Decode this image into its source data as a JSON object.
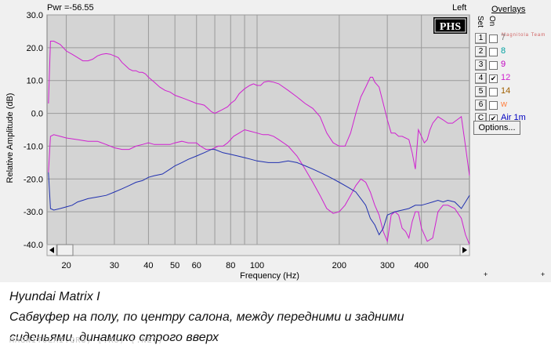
{
  "header": {
    "pwr_label": "Pwr =-56.55",
    "channel": "Left",
    "logo": "PHS",
    "watermark_brand": "Magnitola Team"
  },
  "overlays": {
    "title": "Overlays",
    "set_label": "Set",
    "on_label": "On",
    "items": [
      {
        "key": "1",
        "label": "7",
        "checked": false,
        "color": "#808080"
      },
      {
        "key": "2",
        "label": "8",
        "checked": false,
        "color": "#00a0a0"
      },
      {
        "key": "3",
        "label": "9",
        "checked": false,
        "color": "#c000c0"
      },
      {
        "key": "4",
        "label": "12",
        "checked": true,
        "color": "#d020d0"
      },
      {
        "key": "5",
        "label": "14",
        "checked": false,
        "color": "#a06000"
      },
      {
        "key": "6",
        "label": "w",
        "checked": false,
        "color": "#ff8040"
      },
      {
        "key": "C",
        "label": "Air 1m",
        "checked": true,
        "color": "#0000c0"
      }
    ],
    "options_label": "Options..."
  },
  "chart_data": {
    "type": "line",
    "xlabel": "Frequency (Hz)",
    "ylabel": "Relative Amplitude (dB)",
    "xscale": "log",
    "xlim": [
      17,
      600
    ],
    "ylim": [
      -40,
      30
    ],
    "grid": true,
    "xticks": [
      20,
      30,
      40,
      50,
      60,
      80,
      100,
      200,
      300,
      400
    ],
    "xminor": [
      70,
      90
    ],
    "yticks": [
      30,
      20,
      10,
      0,
      -10,
      -20,
      -30,
      -40
    ],
    "ytick_labels": [
      "30.0",
      "20.0",
      "10.0",
      "0.0",
      "-10.0",
      "-20.0",
      "-30.0",
      "-40.0"
    ],
    "series": [
      {
        "color": "#d020d0",
        "points": [
          [
            17.2,
            3
          ],
          [
            17.5,
            22
          ],
          [
            18,
            22
          ],
          [
            19,
            21
          ],
          [
            20,
            19
          ],
          [
            21,
            18
          ],
          [
            22,
            17
          ],
          [
            23,
            16
          ],
          [
            24,
            16
          ],
          [
            25,
            16.5
          ],
          [
            26,
            17.5
          ],
          [
            27,
            18
          ],
          [
            28,
            18.2
          ],
          [
            29,
            18
          ],
          [
            30,
            17.5
          ],
          [
            31,
            17
          ],
          [
            32,
            15.5
          ],
          [
            33,
            14.5
          ],
          [
            34,
            13.5
          ],
          [
            35,
            13
          ],
          [
            36,
            13
          ],
          [
            37,
            12.5
          ],
          [
            38,
            12.5
          ],
          [
            39,
            12
          ],
          [
            40,
            11
          ],
          [
            42,
            9.5
          ],
          [
            44,
            8
          ],
          [
            46,
            7
          ],
          [
            48,
            6.5
          ],
          [
            50,
            5.5
          ],
          [
            52,
            5
          ],
          [
            54,
            4.5
          ],
          [
            56,
            4
          ],
          [
            58,
            3.5
          ],
          [
            60,
            3
          ],
          [
            62,
            2.8
          ],
          [
            64,
            2.5
          ],
          [
            66,
            1.5
          ],
          [
            68,
            0.5
          ],
          [
            70,
            0
          ],
          [
            72,
            0.5
          ],
          [
            74,
            1
          ],
          [
            76,
            1.5
          ],
          [
            78,
            2
          ],
          [
            80,
            3
          ],
          [
            83,
            4
          ],
          [
            86,
            6
          ],
          [
            90,
            7.5
          ],
          [
            94,
            8.5
          ],
          [
            97,
            9
          ],
          [
            100,
            8.5
          ],
          [
            103,
            8.5
          ],
          [
            106,
            9.5
          ],
          [
            110,
            9.8
          ],
          [
            115,
            9.5
          ],
          [
            120,
            9
          ],
          [
            130,
            7
          ],
          [
            140,
            5
          ],
          [
            150,
            3
          ],
          [
            160,
            1.5
          ],
          [
            170,
            -1
          ],
          [
            180,
            -6
          ],
          [
            190,
            -9
          ],
          [
            200,
            -10
          ],
          [
            210,
            -10
          ],
          [
            220,
            -6
          ],
          [
            230,
            0
          ],
          [
            240,
            5
          ],
          [
            250,
            8
          ],
          [
            260,
            11
          ],
          [
            265,
            11
          ],
          [
            270,
            9.5
          ],
          [
            280,
            8
          ],
          [
            290,
            3
          ],
          [
            300,
            -2
          ],
          [
            310,
            -6
          ],
          [
            320,
            -6
          ],
          [
            330,
            -7
          ],
          [
            340,
            -7
          ],
          [
            360,
            -8
          ],
          [
            370,
            -12
          ],
          [
            380,
            -17
          ],
          [
            390,
            -5
          ],
          [
            400,
            -7
          ],
          [
            410,
            -9
          ],
          [
            420,
            -8
          ],
          [
            430,
            -5
          ],
          [
            440,
            -3
          ],
          [
            450,
            -2
          ],
          [
            460,
            -1
          ],
          [
            480,
            -2
          ],
          [
            500,
            -3
          ],
          [
            520,
            -3
          ],
          [
            540,
            -2
          ],
          [
            560,
            -1
          ],
          [
            580,
            -10
          ],
          [
            600,
            -19
          ]
        ]
      },
      {
        "color": "#d020d0",
        "points": [
          [
            17.2,
            -18
          ],
          [
            17.5,
            -7
          ],
          [
            18,
            -6.5
          ],
          [
            19,
            -7
          ],
          [
            20,
            -7.5
          ],
          [
            22,
            -8
          ],
          [
            24,
            -8.5
          ],
          [
            26,
            -8.5
          ],
          [
            28,
            -9.5
          ],
          [
            30,
            -10.5
          ],
          [
            32,
            -11
          ],
          [
            34,
            -11
          ],
          [
            36,
            -10
          ],
          [
            38,
            -9.5
          ],
          [
            40,
            -9
          ],
          [
            42,
            -9.5
          ],
          [
            44,
            -9.5
          ],
          [
            46,
            -9.5
          ],
          [
            48,
            -9.5
          ],
          [
            50,
            -9
          ],
          [
            53,
            -8.5
          ],
          [
            56,
            -9
          ],
          [
            58,
            -9
          ],
          [
            60,
            -9
          ],
          [
            62,
            -10
          ],
          [
            65,
            -11
          ],
          [
            68,
            -11
          ],
          [
            70,
            -10.5
          ],
          [
            72,
            -10
          ],
          [
            75,
            -10
          ],
          [
            78,
            -9
          ],
          [
            82,
            -7
          ],
          [
            86,
            -6
          ],
          [
            90,
            -5
          ],
          [
            95,
            -5.5
          ],
          [
            100,
            -6
          ],
          [
            105,
            -6.5
          ],
          [
            110,
            -6.5
          ],
          [
            115,
            -7
          ],
          [
            120,
            -8
          ],
          [
            130,
            -10
          ],
          [
            140,
            -13
          ],
          [
            150,
            -17
          ],
          [
            160,
            -21
          ],
          [
            170,
            -25
          ],
          [
            180,
            -29
          ],
          [
            190,
            -30.5
          ],
          [
            200,
            -30
          ],
          [
            210,
            -28
          ],
          [
            220,
            -25
          ],
          [
            230,
            -22
          ],
          [
            240,
            -20
          ],
          [
            250,
            -21
          ],
          [
            260,
            -24
          ],
          [
            270,
            -28
          ],
          [
            280,
            -31
          ],
          [
            290,
            -36
          ],
          [
            300,
            -39
          ],
          [
            310,
            -31
          ],
          [
            320,
            -30
          ],
          [
            330,
            -31
          ],
          [
            340,
            -35
          ],
          [
            350,
            -36
          ],
          [
            360,
            -38
          ],
          [
            370,
            -33
          ],
          [
            380,
            -30
          ],
          [
            390,
            -30
          ],
          [
            400,
            -35
          ],
          [
            420,
            -39
          ],
          [
            440,
            -38
          ],
          [
            460,
            -30
          ],
          [
            480,
            -28
          ],
          [
            500,
            -28
          ],
          [
            530,
            -29
          ],
          [
            560,
            -32
          ],
          [
            580,
            -37
          ],
          [
            600,
            -40
          ]
        ]
      },
      {
        "color": "#2030b0",
        "points": [
          [
            17.2,
            -18
          ],
          [
            17.5,
            -29
          ],
          [
            18,
            -29.5
          ],
          [
            19,
            -29
          ],
          [
            20,
            -28.5
          ],
          [
            21,
            -28
          ],
          [
            22,
            -27
          ],
          [
            23,
            -26.5
          ],
          [
            24,
            -26
          ],
          [
            26,
            -25.5
          ],
          [
            28,
            -25
          ],
          [
            30,
            -24
          ],
          [
            32,
            -23
          ],
          [
            34,
            -22
          ],
          [
            36,
            -21
          ],
          [
            38,
            -20.5
          ],
          [
            40,
            -19.5
          ],
          [
            42,
            -19
          ],
          [
            45,
            -18.5
          ],
          [
            48,
            -17
          ],
          [
            50,
            -16
          ],
          [
            53,
            -15
          ],
          [
            56,
            -14
          ],
          [
            60,
            -13
          ],
          [
            64,
            -12
          ],
          [
            68,
            -11
          ],
          [
            70,
            -11
          ],
          [
            75,
            -12
          ],
          [
            80,
            -12.5
          ],
          [
            85,
            -13
          ],
          [
            90,
            -13.5
          ],
          [
            95,
            -14
          ],
          [
            100,
            -14.5
          ],
          [
            110,
            -15
          ],
          [
            120,
            -15
          ],
          [
            130,
            -14.5
          ],
          [
            140,
            -15
          ],
          [
            150,
            -16
          ],
          [
            160,
            -17
          ],
          [
            170,
            -18
          ],
          [
            180,
            -19
          ],
          [
            190,
            -20
          ],
          [
            200,
            -21
          ],
          [
            210,
            -22
          ],
          [
            220,
            -23
          ],
          [
            230,
            -24
          ],
          [
            240,
            -26
          ],
          [
            250,
            -28
          ],
          [
            260,
            -32
          ],
          [
            270,
            -34
          ],
          [
            280,
            -37
          ],
          [
            290,
            -35
          ],
          [
            300,
            -31
          ],
          [
            320,
            -30
          ],
          [
            340,
            -29.5
          ],
          [
            360,
            -29
          ],
          [
            380,
            -28
          ],
          [
            400,
            -28
          ],
          [
            420,
            -27.5
          ],
          [
            440,
            -27
          ],
          [
            460,
            -26.5
          ],
          [
            480,
            -27
          ],
          [
            500,
            -26.5
          ],
          [
            530,
            -27
          ],
          [
            560,
            -29
          ],
          [
            580,
            -27
          ],
          [
            600,
            -25
          ]
        ]
      }
    ]
  },
  "caption": {
    "line1": "Hyundai Matrix I",
    "line2": "Сабвуфер на полу, по центру салона, между передними и задними",
    "line3": "сиденьями, динамико строго вверх"
  },
  "watermark": "MAGNITOLAI.ORG) [.RU) [.NET)"
}
